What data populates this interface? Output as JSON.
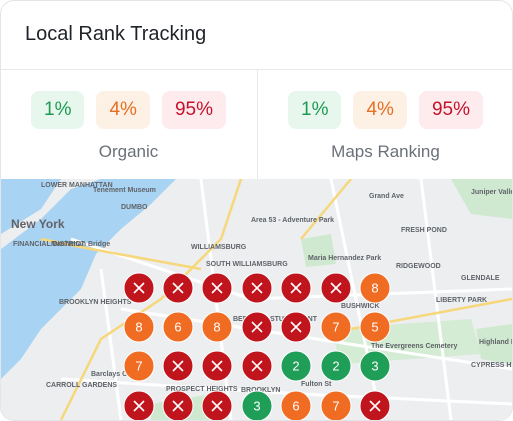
{
  "header": {
    "title": "Local Rank Tracking"
  },
  "panels": [
    {
      "label": "Organic",
      "stats": [
        "1%",
        "4%",
        "95%"
      ]
    },
    {
      "label": "Maps Ranking",
      "stats": [
        "1%",
        "4%",
        "95%"
      ]
    }
  ],
  "stat_colors": [
    {
      "text": "#1e9a52",
      "background": "#e8f7ee"
    },
    {
      "text": "#e56f22",
      "background": "#fdf0e5"
    },
    {
      "text": "#c3132b",
      "background": "#fdebee"
    }
  ],
  "map": {
    "labels": [
      "LOWER MANHATTAN",
      "Tenement Museum",
      "DUMBO",
      "New York",
      "FINANCIAL DISTRICT",
      "Manhattan Bridge",
      "WILLIAMSBURG",
      "SOUTH WILLIAMSBURG",
      "Area 53 - Adventure Park",
      "Maria Hernandez Park",
      "Grand Ave",
      "Juniper Valley Park",
      "FRESH POND",
      "RIDGEWOOD",
      "GLENDALE",
      "BUSHWICK",
      "LIBERTY PARK",
      "BROOKLYN HEIGHTS",
      "BEDFORD-STUYVESANT",
      "The Evergreens Cemetery",
      "Highland Park",
      "CYPRESS HILLS",
      "Barclays Center",
      "CARROLL GARDENS",
      "PROSPECT HEIGHTS",
      "BROOKLYN",
      "Fulton St"
    ],
    "grid": [
      [
        null,
        null,
        null,
        null,
        null,
        null,
        8
      ],
      [
        8,
        6,
        8,
        null,
        null,
        7,
        5
      ],
      [
        7,
        null,
        null,
        null,
        2,
        2,
        3
      ],
      [
        null,
        null,
        null,
        3,
        6,
        7,
        null
      ]
    ],
    "color_scale": [
      {
        "max": 3,
        "color": "#1e9e57"
      },
      {
        "max": 10,
        "color": "#ef6c22"
      }
    ],
    "unranked_color": "#c0151d"
  }
}
